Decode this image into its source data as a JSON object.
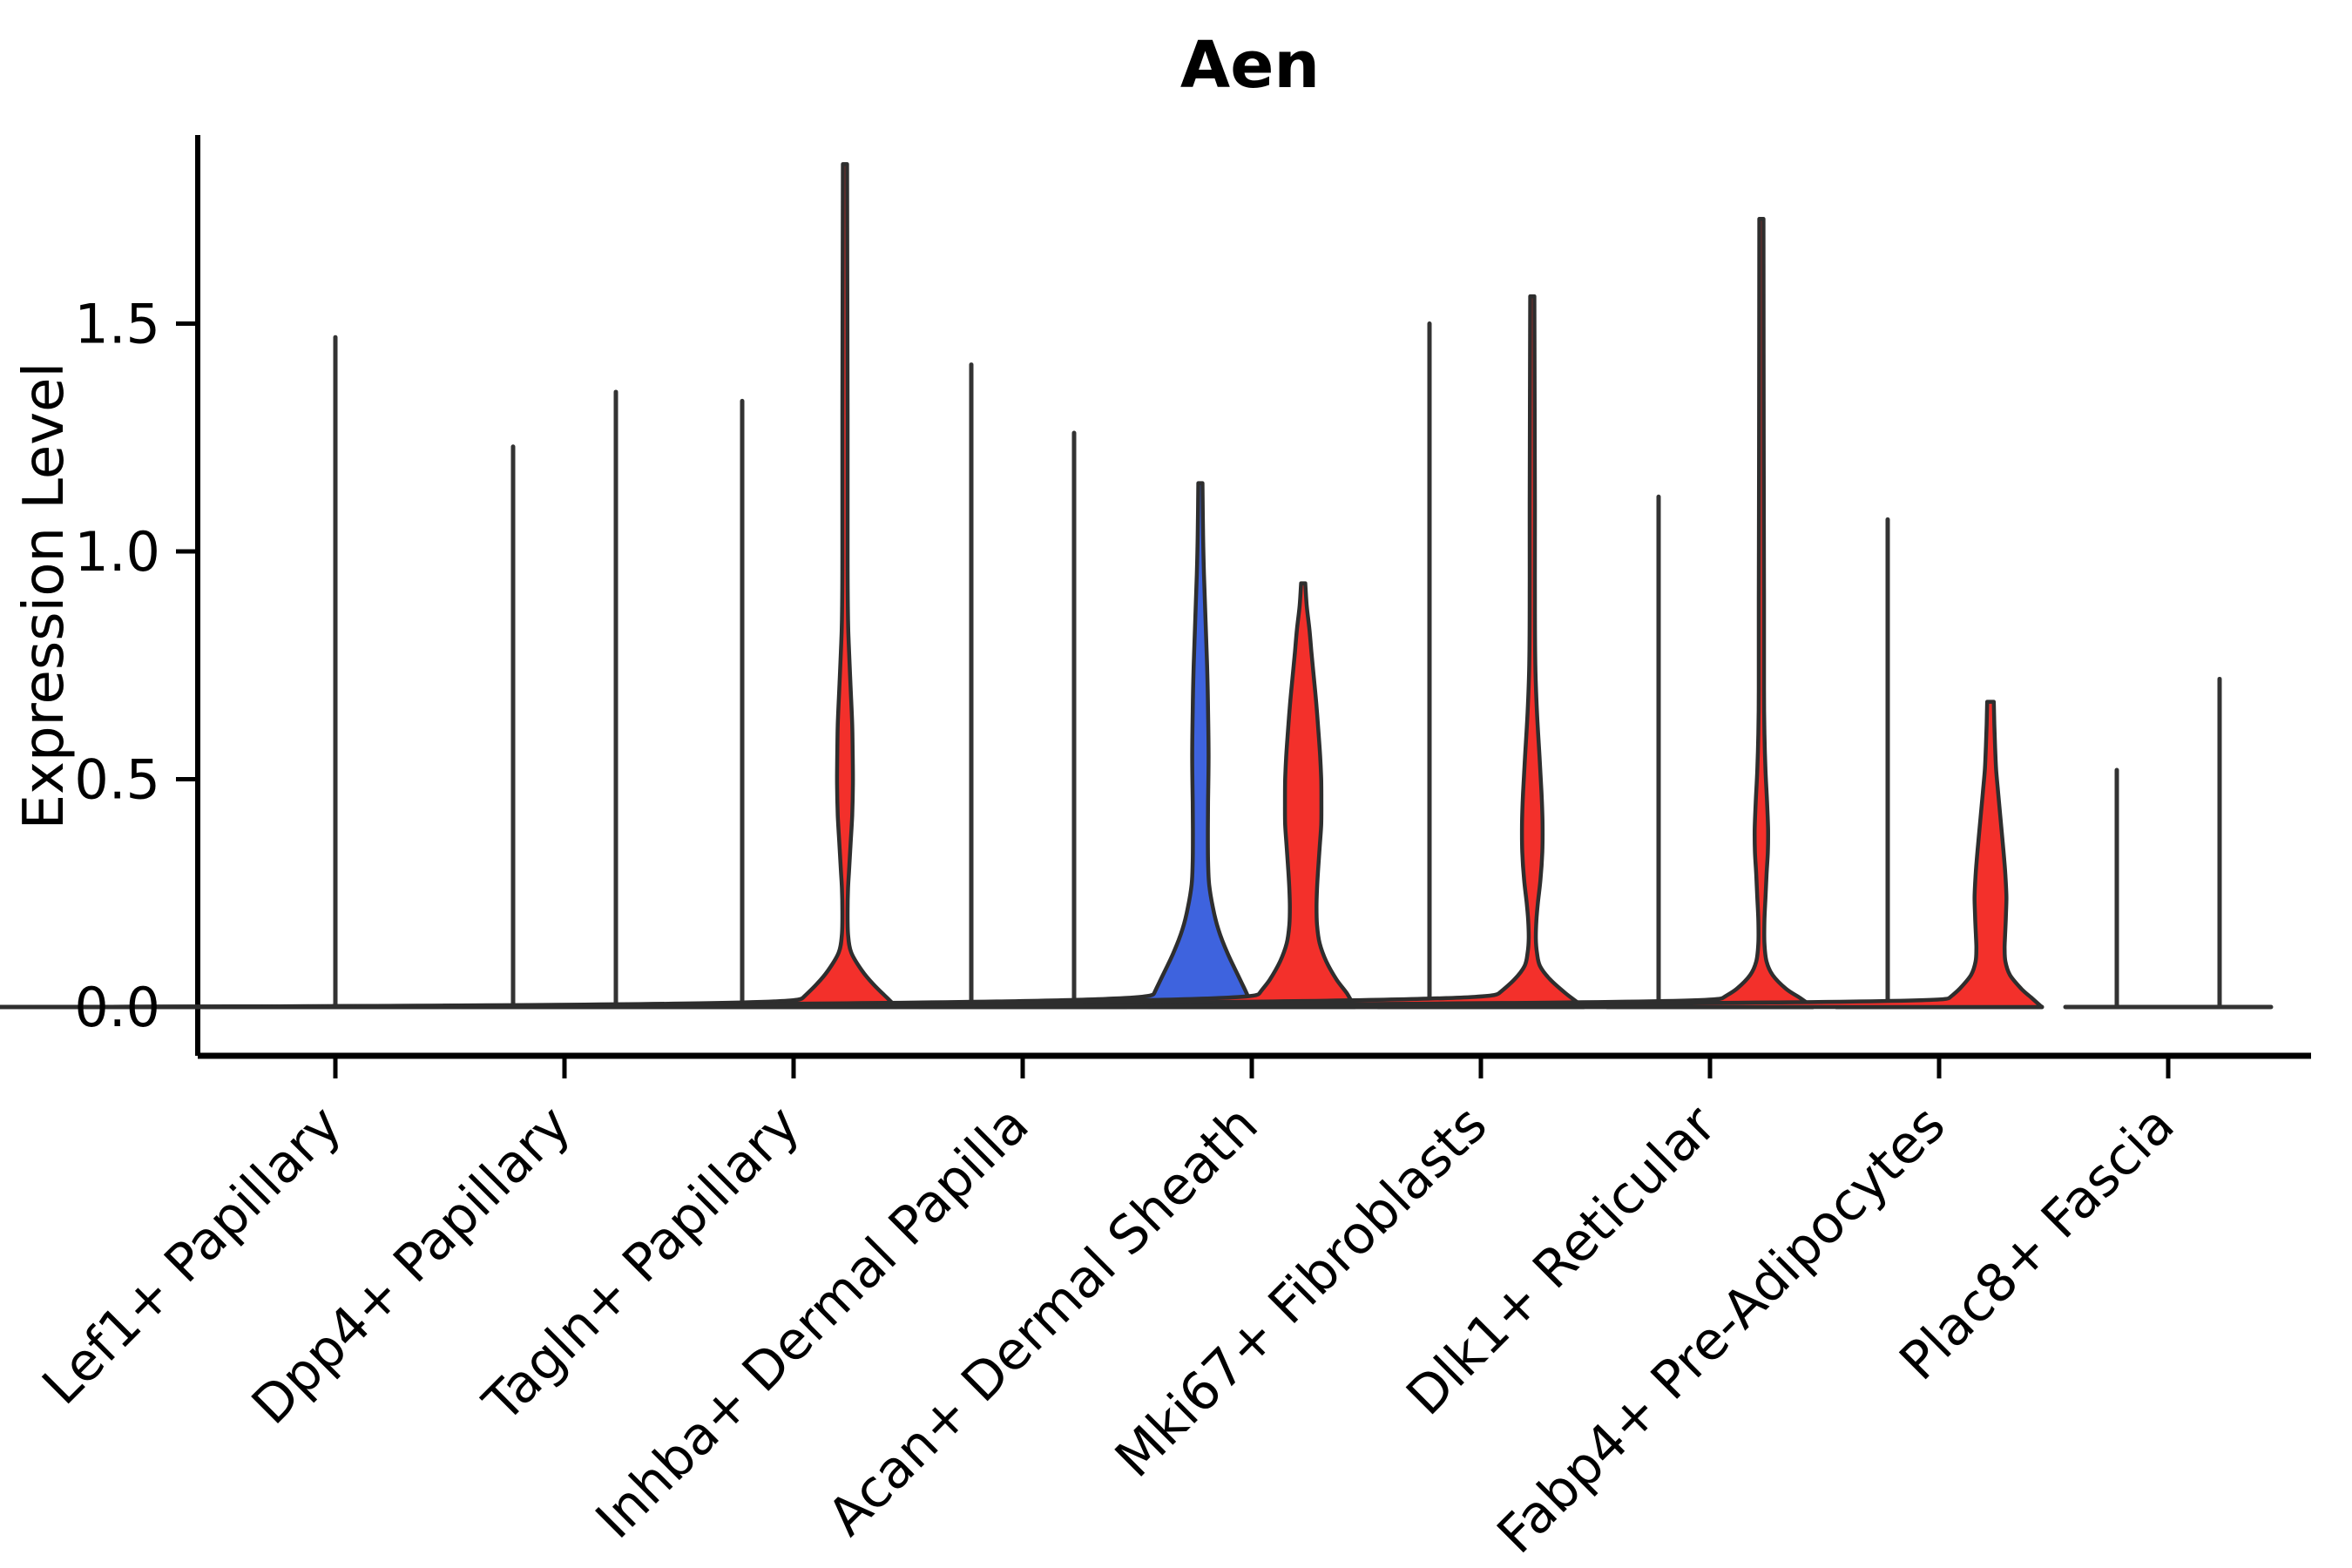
{
  "chart_data": {
    "type": "violin",
    "title": "Aen",
    "xlabel": "",
    "ylabel": "Expression Level",
    "ytick_labels": [
      "0.0",
      "0.5",
      "1.0",
      "1.5"
    ],
    "ytick_values": [
      0.0,
      0.5,
      1.0,
      1.5
    ],
    "ylim": [
      -0.11,
      1.91
    ],
    "grid": false,
    "legend": "none",
    "split_violin": true,
    "colors": {
      "group_blue": "#3E63DE",
      "group_red": "#F3302B",
      "outline": "#2E2E2E",
      "line": "#333333",
      "axis": "#000000"
    },
    "categories": [
      "Lef1+ Papillary",
      "Dpp4+ Papillary",
      "Tagln+ Papillary",
      "Inhba+ Dermal Papilla",
      "Acan+ Dermal Sheath",
      "Mki67+ Fibroblasts",
      "Dlk1+ Reticular",
      "Fabp4+ Pre-Adipocytes",
      "Plac8+ Fascia"
    ],
    "profile_note": "profile points are [expression_value, violin_half_width_fraction]",
    "violins": [
      {
        "category": "Lef1+ Papillary",
        "cat_index": 0,
        "side": "center",
        "fill": "none",
        "max_expression": 1.47
      },
      {
        "category": "Dpp4+ Papillary",
        "cat_index": 1,
        "side": "left",
        "fill": "none",
        "max_expression": 1.23
      },
      {
        "category": "Dpp4+ Papillary",
        "cat_index": 1,
        "side": "right",
        "fill": "none",
        "max_expression": 1.35
      },
      {
        "category": "Tagln+ Papillary",
        "cat_index": 2,
        "side": "left",
        "fill": "none",
        "max_expression": 1.33
      },
      {
        "category": "Tagln+ Papillary",
        "cat_index": 2,
        "side": "right",
        "fill": "red",
        "max_expression": 1.85,
        "profile": [
          [
            1.85,
            0.04
          ],
          [
            1.3,
            0.05
          ],
          [
            1.0,
            0.05
          ],
          [
            0.85,
            0.06
          ],
          [
            0.78,
            0.08
          ],
          [
            0.7,
            0.11
          ],
          [
            0.62,
            0.14
          ],
          [
            0.55,
            0.15
          ],
          [
            0.49,
            0.155
          ],
          [
            0.42,
            0.14
          ],
          [
            0.36,
            0.11
          ],
          [
            0.3,
            0.08
          ],
          [
            0.26,
            0.06
          ],
          [
            0.21,
            0.05
          ],
          [
            0.16,
            0.06
          ],
          [
            0.12,
            0.12
          ],
          [
            0.08,
            0.33
          ],
          [
            0.05,
            0.55
          ],
          [
            0.02,
            0.82
          ],
          [
            0.0,
            1.0
          ]
        ]
      },
      {
        "category": "Inhba+ Dermal Papilla",
        "cat_index": 3,
        "side": "left",
        "fill": "none",
        "max_expression": 1.41
      },
      {
        "category": "Inhba+ Dermal Papilla",
        "cat_index": 3,
        "side": "right",
        "fill": "none",
        "max_expression": 1.26
      },
      {
        "category": "Acan+ Dermal Sheath",
        "cat_index": 4,
        "side": "left",
        "fill": "blue",
        "max_expression": 1.15,
        "profile": [
          [
            1.15,
            0.04
          ],
          [
            1.05,
            0.05
          ],
          [
            0.95,
            0.07
          ],
          [
            0.85,
            0.1
          ],
          [
            0.75,
            0.13
          ],
          [
            0.65,
            0.15
          ],
          [
            0.55,
            0.16
          ],
          [
            0.45,
            0.15
          ],
          [
            0.38,
            0.145
          ],
          [
            0.32,
            0.15
          ],
          [
            0.27,
            0.17
          ],
          [
            0.22,
            0.24
          ],
          [
            0.17,
            0.35
          ],
          [
            0.12,
            0.52
          ],
          [
            0.07,
            0.73
          ],
          [
            0.03,
            0.9
          ],
          [
            0.0,
            1.0
          ]
        ]
      },
      {
        "category": "Acan+ Dermal Sheath",
        "cat_index": 4,
        "side": "right",
        "fill": "red",
        "max_expression": 0.93,
        "profile": [
          [
            0.93,
            0.04
          ],
          [
            0.88,
            0.07
          ],
          [
            0.83,
            0.12
          ],
          [
            0.78,
            0.16
          ],
          [
            0.72,
            0.21
          ],
          [
            0.66,
            0.26
          ],
          [
            0.6,
            0.3
          ],
          [
            0.55,
            0.33
          ],
          [
            0.5,
            0.35
          ],
          [
            0.45,
            0.355
          ],
          [
            0.4,
            0.35
          ],
          [
            0.35,
            0.32
          ],
          [
            0.3,
            0.29
          ],
          [
            0.26,
            0.27
          ],
          [
            0.22,
            0.26
          ],
          [
            0.18,
            0.27
          ],
          [
            0.14,
            0.32
          ],
          [
            0.1,
            0.45
          ],
          [
            0.06,
            0.65
          ],
          [
            0.03,
            0.85
          ],
          [
            0.0,
            1.0
          ]
        ]
      },
      {
        "category": "Mki67+ Fibroblasts",
        "cat_index": 5,
        "side": "left",
        "fill": "none",
        "max_expression": 1.5
      },
      {
        "category": "Mki67+ Fibroblasts",
        "cat_index": 5,
        "side": "right",
        "fill": "red",
        "max_expression": 1.56,
        "profile": [
          [
            1.56,
            0.04
          ],
          [
            1.1,
            0.05
          ],
          [
            0.9,
            0.05
          ],
          [
            0.75,
            0.06
          ],
          [
            0.65,
            0.09
          ],
          [
            0.55,
            0.14
          ],
          [
            0.47,
            0.18
          ],
          [
            0.4,
            0.2
          ],
          [
            0.34,
            0.195
          ],
          [
            0.28,
            0.16
          ],
          [
            0.23,
            0.11
          ],
          [
            0.19,
            0.08
          ],
          [
            0.15,
            0.07
          ],
          [
            0.12,
            0.09
          ],
          [
            0.09,
            0.15
          ],
          [
            0.06,
            0.35
          ],
          [
            0.03,
            0.65
          ],
          [
            0.0,
            1.0
          ]
        ]
      },
      {
        "category": "Dlk1+ Reticular",
        "cat_index": 6,
        "side": "left",
        "fill": "none",
        "max_expression": 1.12
      },
      {
        "category": "Dlk1+ Reticular",
        "cat_index": 6,
        "side": "right",
        "fill": "red",
        "max_expression": 1.73,
        "profile": [
          [
            1.73,
            0.04
          ],
          [
            1.2,
            0.045
          ],
          [
            0.9,
            0.05
          ],
          [
            0.7,
            0.05
          ],
          [
            0.6,
            0.06
          ],
          [
            0.52,
            0.08
          ],
          [
            0.45,
            0.11
          ],
          [
            0.39,
            0.13
          ],
          [
            0.34,
            0.125
          ],
          [
            0.29,
            0.1
          ],
          [
            0.24,
            0.08
          ],
          [
            0.19,
            0.06
          ],
          [
            0.14,
            0.06
          ],
          [
            0.1,
            0.1
          ],
          [
            0.07,
            0.22
          ],
          [
            0.04,
            0.48
          ],
          [
            0.02,
            0.75
          ],
          [
            0.0,
            1.0
          ]
        ]
      },
      {
        "category": "Fabp4+ Pre-Adipocytes",
        "cat_index": 7,
        "side": "left",
        "fill": "none",
        "max_expression": 1.07
      },
      {
        "category": "Fabp4+ Pre-Adipocytes",
        "cat_index": 7,
        "side": "right",
        "fill": "red",
        "max_expression": 0.67,
        "profile": [
          [
            0.67,
            0.065
          ],
          [
            0.62,
            0.075
          ],
          [
            0.57,
            0.09
          ],
          [
            0.52,
            0.11
          ],
          [
            0.47,
            0.15
          ],
          [
            0.42,
            0.19
          ],
          [
            0.37,
            0.23
          ],
          [
            0.32,
            0.27
          ],
          [
            0.28,
            0.295
          ],
          [
            0.24,
            0.31
          ],
          [
            0.2,
            0.3
          ],
          [
            0.16,
            0.285
          ],
          [
            0.13,
            0.275
          ],
          [
            0.1,
            0.29
          ],
          [
            0.07,
            0.38
          ],
          [
            0.04,
            0.6
          ],
          [
            0.02,
            0.8
          ],
          [
            0.0,
            1.0
          ]
        ]
      },
      {
        "category": "Plac8+ Fascia",
        "cat_index": 8,
        "side": "left",
        "fill": "none",
        "max_expression": 0.52
      },
      {
        "category": "Plac8+ Fascia",
        "cat_index": 8,
        "side": "right",
        "fill": "none",
        "max_expression": 0.72
      }
    ]
  }
}
